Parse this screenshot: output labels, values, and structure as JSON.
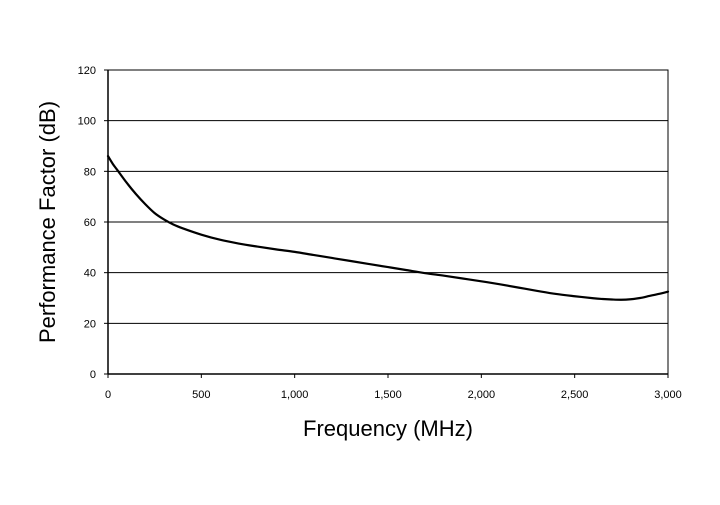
{
  "chart_data": {
    "type": "line",
    "title": "",
    "xlabel": "Frequency (MHz)",
    "ylabel": "Performance Factor (dB)",
    "xlim": [
      0,
      3000
    ],
    "ylim": [
      0,
      120
    ],
    "x_ticks": [
      0,
      500,
      1000,
      1500,
      2000,
      2500,
      3000
    ],
    "x_tick_labels": [
      "0",
      "500",
      "1,000",
      "1,500",
      "2,000",
      "2,500",
      "3,000"
    ],
    "y_ticks": [
      0,
      20,
      40,
      60,
      80,
      100,
      120
    ],
    "y_tick_labels": [
      "0",
      "20",
      "40",
      "60",
      "80",
      "100",
      "120"
    ],
    "grid": "horizontal",
    "legend": "none",
    "line_color": "#000000",
    "series": [
      {
        "x": [
          0,
          25,
          50,
          100,
          150,
          200,
          250,
          300,
          350,
          400,
          500,
          600,
          700,
          800,
          900,
          1000,
          1100,
          1200,
          1300,
          1400,
          1500,
          1600,
          1700,
          1800,
          1900,
          2000,
          2100,
          2200,
          2300,
          2400,
          2500,
          2600,
          2650,
          2700,
          2750,
          2800,
          2850,
          2900,
          2950,
          3000
        ],
        "y": [
          86,
          83,
          80.5,
          75.5,
          71,
          67,
          63.5,
          61,
          59,
          57.5,
          55,
          53,
          51.5,
          50.3,
          49.2,
          48.2,
          47,
          45.8,
          44.6,
          43.4,
          42.2,
          41,
          39.8,
          38.8,
          37.7,
          36.6,
          35.4,
          34.1,
          32.8,
          31.6,
          30.7,
          29.9,
          29.6,
          29.4,
          29.3,
          29.5,
          30,
          30.8,
          31.6,
          32.5
        ]
      }
    ]
  }
}
